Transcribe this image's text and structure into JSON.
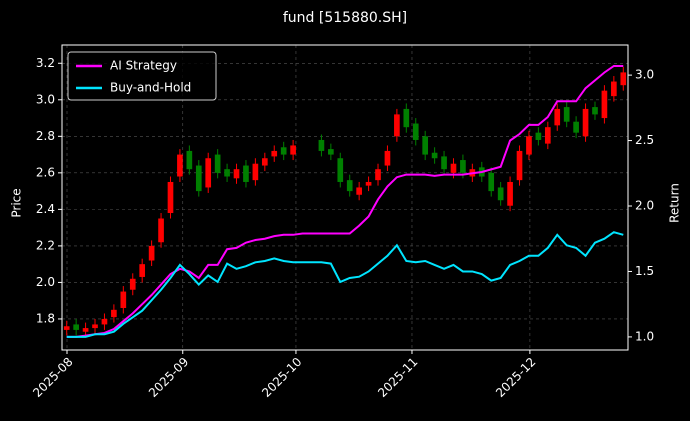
{
  "chart_data": {
    "type": "candlestick",
    "title": "fund [515880.SH]",
    "ylabel": "Price",
    "y2label": "Return",
    "categories": [
      null,
      null,
      null,
      null,
      null,
      null,
      null,
      null,
      null,
      null,
      null,
      null,
      null,
      null,
      null,
      null,
      null,
      null,
      null,
      null,
      null,
      null,
      null,
      null,
      null,
      null,
      null,
      null,
      null,
      null,
      null,
      null,
      null,
      null,
      null,
      null,
      null,
      null,
      null,
      null,
      null,
      null,
      null,
      null,
      null,
      null,
      null,
      null,
      null,
      null,
      null,
      null,
      null,
      null,
      null,
      null,
      null,
      null,
      null,
      null
    ],
    "open": [
      1.74,
      1.77,
      1.73,
      1.75,
      1.77,
      1.81,
      1.86,
      1.96,
      2.03,
      2.12,
      2.22,
      2.38,
      2.58,
      2.72,
      2.64,
      2.52,
      2.7,
      2.62,
      2.57,
      2.64,
      2.56,
      2.64,
      2.69,
      2.74,
      2.7,
      null,
      null,
      2.78,
      2.73,
      2.68,
      2.56,
      2.48,
      2.53,
      2.56,
      2.64,
      2.8,
      2.95,
      2.87,
      2.8,
      2.71,
      2.69,
      2.6,
      2.67,
      2.58,
      2.63,
      2.6,
      2.52,
      2.42,
      2.56,
      2.7,
      2.82,
      2.76,
      2.86,
      2.96,
      2.88,
      2.8,
      2.96,
      2.9,
      3.02,
      3.08
    ],
    "high": [
      1.79,
      1.8,
      1.78,
      1.8,
      1.83,
      1.88,
      1.98,
      2.05,
      2.13,
      2.23,
      2.38,
      2.58,
      2.73,
      2.75,
      2.67,
      2.71,
      2.73,
      2.65,
      2.65,
      2.67,
      2.68,
      2.71,
      2.75,
      2.77,
      2.78,
      null,
      null,
      2.81,
      2.76,
      2.71,
      2.59,
      2.55,
      2.58,
      2.65,
      2.75,
      2.95,
      2.98,
      2.9,
      2.83,
      2.74,
      2.72,
      2.68,
      2.7,
      2.65,
      2.66,
      2.63,
      2.55,
      2.58,
      2.75,
      2.83,
      2.85,
      2.88,
      2.98,
      2.99,
      2.91,
      2.98,
      2.99,
      3.08,
      3.13,
      3.18
    ],
    "low": [
      1.71,
      1.71,
      1.7,
      1.72,
      1.74,
      1.78,
      1.83,
      1.93,
      2.0,
      2.09,
      2.19,
      2.35,
      2.55,
      2.59,
      2.47,
      2.49,
      2.57,
      2.55,
      2.54,
      2.52,
      2.53,
      2.61,
      2.66,
      2.67,
      2.67,
      null,
      null,
      2.69,
      2.67,
      2.52,
      2.47,
      2.45,
      2.5,
      2.53,
      2.61,
      2.77,
      2.82,
      2.75,
      2.67,
      2.65,
      2.59,
      2.57,
      2.57,
      2.55,
      2.55,
      2.47,
      2.42,
      2.39,
      2.53,
      2.67,
      2.75,
      2.73,
      2.83,
      2.85,
      2.79,
      2.77,
      2.89,
      2.87,
      2.99,
      3.05
    ],
    "close": [
      1.76,
      1.74,
      1.75,
      1.77,
      1.8,
      1.85,
      1.95,
      2.02,
      2.1,
      2.2,
      2.35,
      2.55,
      2.7,
      2.62,
      2.5,
      2.68,
      2.6,
      2.58,
      2.62,
      2.55,
      2.65,
      2.68,
      2.72,
      2.7,
      2.75,
      null,
      null,
      2.72,
      2.7,
      2.55,
      2.5,
      2.52,
      2.55,
      2.62,
      2.72,
      2.92,
      2.85,
      2.78,
      2.7,
      2.68,
      2.62,
      2.65,
      2.6,
      2.62,
      2.58,
      2.5,
      2.45,
      2.55,
      2.72,
      2.8,
      2.78,
      2.85,
      2.95,
      2.88,
      2.82,
      2.95,
      2.92,
      3.05,
      3.1,
      3.15
    ],
    "up_color": "#ff0000",
    "down_color": "#008000",
    "series": [
      {
        "name": "AI Strategy",
        "color": "#ff00ff",
        "axis": "y2",
        "values": [
          1.0,
          1.0,
          1.01,
          1.02,
          1.03,
          1.06,
          1.12,
          1.18,
          1.25,
          1.32,
          1.4,
          1.48,
          1.52,
          1.5,
          1.45,
          1.55,
          1.55,
          1.67,
          1.68,
          1.72,
          1.74,
          1.75,
          1.77,
          1.78,
          1.78,
          1.79,
          1.79,
          1.79,
          1.79,
          1.79,
          1.79,
          1.85,
          1.92,
          2.05,
          2.15,
          2.22,
          2.24,
          2.24,
          2.24,
          2.23,
          2.24,
          2.24,
          2.24,
          2.25,
          2.26,
          2.28,
          2.3,
          2.5,
          2.55,
          2.62,
          2.62,
          2.68,
          2.8,
          2.8,
          2.8,
          2.9,
          2.96,
          3.02,
          3.07,
          3.07
        ]
      },
      {
        "name": "Buy-and-Hold",
        "color": "#00e5ff",
        "axis": "y2",
        "values": [
          1.0,
          1.0,
          1.0,
          1.02,
          1.02,
          1.04,
          1.1,
          1.15,
          1.2,
          1.28,
          1.36,
          1.45,
          1.55,
          1.48,
          1.4,
          1.47,
          1.42,
          1.56,
          1.52,
          1.54,
          1.57,
          1.58,
          1.6,
          1.58,
          1.57,
          1.57,
          1.57,
          1.57,
          1.56,
          1.42,
          1.45,
          1.46,
          1.5,
          1.56,
          1.62,
          1.7,
          1.58,
          1.57,
          1.58,
          1.55,
          1.52,
          1.55,
          1.5,
          1.5,
          1.48,
          1.43,
          1.45,
          1.55,
          1.58,
          1.62,
          1.62,
          1.68,
          1.78,
          1.7,
          1.68,
          1.62,
          1.72,
          1.75,
          1.8,
          1.78
        ]
      }
    ],
    "ylim": [
      1.63,
      3.3
    ],
    "yticks": [
      1.8,
      {
        "value": 2.0,
        "label": "2.0"
      },
      2.2,
      2.4,
      2.6,
      2.8,
      {
        "value": 3.0,
        "label": "3.0"
      },
      3.2
    ],
    "y2lim": [
      0.9,
      3.23
    ],
    "y2ticks": [
      {
        "value": 1.0,
        "label": "1.0"
      },
      1.5,
      {
        "value": 2.0,
        "label": "2.0"
      },
      2.5,
      {
        "value": 3.0,
        "label": "3.0"
      }
    ],
    "xticks": [
      {
        "value": 0.03,
        "label": "2025-08"
      },
      {
        "value": 12.3,
        "label": "2025-09"
      },
      {
        "value": 24.3,
        "label": "2025-10"
      },
      {
        "value": 36.6,
        "label": "2025-11"
      },
      {
        "value": 49.1,
        "label": "2025-12"
      }
    ],
    "grid": true,
    "legend": "upper left"
  }
}
